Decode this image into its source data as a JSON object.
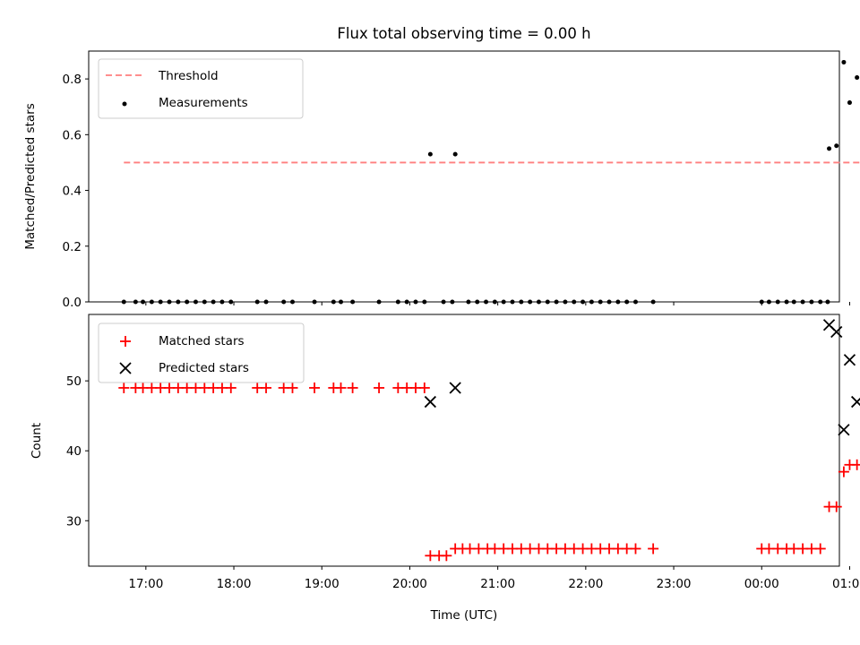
{
  "chart_data": [
    {
      "type": "scatter",
      "title": "Flux total observing time = 0.00 h",
      "xlabel": "",
      "ylabel": "Matched/Predicted stars",
      "ylim": [
        0.0,
        0.9
      ],
      "xlim": [
        "16:21",
        "00:53 +1d"
      ],
      "yticks": [
        "0.0",
        "0.2",
        "0.4",
        "0.6",
        "0.8"
      ],
      "legend": {
        "placement": "upper left",
        "entries": [
          "Threshold",
          "Measurements"
        ]
      },
      "threshold": {
        "name": "Threshold",
        "value": 0.5,
        "x_range": [
          "16:45",
          "01:23"
        ],
        "color": "#ff7f7f",
        "style": "dashed"
      },
      "series": [
        {
          "name": "Measurements",
          "color": "#000000",
          "points": [
            [
              "16:45",
              0.0
            ],
            [
              "16:53",
              0.0
            ],
            [
              "16:58",
              0.0
            ],
            [
              "17:04",
              0.0
            ],
            [
              "17:10",
              0.0
            ],
            [
              "17:16",
              0.0
            ],
            [
              "17:22",
              0.0
            ],
            [
              "17:28",
              0.0
            ],
            [
              "17:34",
              0.0
            ],
            [
              "17:40",
              0.0
            ],
            [
              "17:46",
              0.0
            ],
            [
              "17:52",
              0.0
            ],
            [
              "17:58",
              0.0
            ],
            [
              "18:16",
              0.0
            ],
            [
              "18:22",
              0.0
            ],
            [
              "18:34",
              0.0
            ],
            [
              "18:40",
              0.0
            ],
            [
              "18:55",
              0.0
            ],
            [
              "19:08",
              0.0
            ],
            [
              "19:13",
              0.0
            ],
            [
              "19:21",
              0.0
            ],
            [
              "19:39",
              0.0
            ],
            [
              "19:52",
              0.0
            ],
            [
              "19:58",
              0.0
            ],
            [
              "20:04",
              0.0
            ],
            [
              "20:10",
              0.0
            ],
            [
              "20:23",
              0.0
            ],
            [
              "20:29",
              0.0
            ],
            [
              "20:40",
              0.0
            ],
            [
              "20:46",
              0.0
            ],
            [
              "20:52",
              0.0
            ],
            [
              "20:58",
              0.0
            ],
            [
              "21:04",
              0.0
            ],
            [
              "21:10",
              0.0
            ],
            [
              "21:16",
              0.0
            ],
            [
              "21:22",
              0.0
            ],
            [
              "21:28",
              0.0
            ],
            [
              "21:34",
              0.0
            ],
            [
              "21:40",
              0.0
            ],
            [
              "21:46",
              0.0
            ],
            [
              "21:52",
              0.0
            ],
            [
              "21:58",
              0.0
            ],
            [
              "22:04",
              0.0
            ],
            [
              "22:10",
              0.0
            ],
            [
              "22:16",
              0.0
            ],
            [
              "22:22",
              0.0
            ],
            [
              "22:28",
              0.0
            ],
            [
              "22:34",
              0.0
            ],
            [
              "22:46",
              0.0
            ],
            [
              "00:00",
              0.0
            ],
            [
              "00:05",
              0.0
            ],
            [
              "00:11",
              0.0
            ],
            [
              "00:17",
              0.0
            ],
            [
              "00:22",
              0.0
            ],
            [
              "00:28",
              0.0
            ],
            [
              "00:34",
              0.0
            ],
            [
              "00:40",
              0.0
            ],
            [
              "00:45",
              0.0
            ],
            [
              "20:14",
              0.53
            ],
            [
              "20:31",
              0.53
            ],
            [
              "00:46",
              0.55
            ],
            [
              "00:51",
              0.56
            ],
            [
              "00:56",
              0.86
            ],
            [
              "01:00",
              0.715
            ],
            [
              "01:05",
              0.805
            ],
            [
              "01:11",
              0.74
            ],
            [
              "01:16",
              0.695
            ],
            [
              "01:20",
              0.765
            ],
            [
              "01:25",
              0.66
            ]
          ]
        }
      ]
    },
    {
      "type": "scatter",
      "title": "",
      "xlabel": "Time (UTC)",
      "ylabel": "Count",
      "ylim": [
        23.5,
        59.5
      ],
      "xlim": [
        "16:21",
        "00:53 +1d"
      ],
      "xticks": [
        "17:00",
        "18:00",
        "19:00",
        "20:00",
        "21:00",
        "22:00",
        "23:00",
        "00:00",
        "01:00"
      ],
      "yticks": [
        "30",
        "40",
        "50"
      ],
      "legend": {
        "placement": "upper left",
        "entries": [
          "Matched stars",
          "Predicted stars"
        ]
      },
      "series": [
        {
          "name": "Matched stars",
          "color": "#ff0000",
          "marker": "+",
          "points": [
            [
              "16:45",
              49
            ],
            [
              "16:53",
              49
            ],
            [
              "16:58",
              49
            ],
            [
              "17:04",
              49
            ],
            [
              "17:10",
              49
            ],
            [
              "17:16",
              49
            ],
            [
              "17:22",
              49
            ],
            [
              "17:28",
              49
            ],
            [
              "17:34",
              49
            ],
            [
              "17:40",
              49
            ],
            [
              "17:46",
              49
            ],
            [
              "17:52",
              49
            ],
            [
              "17:58",
              49
            ],
            [
              "18:16",
              49
            ],
            [
              "18:22",
              49
            ],
            [
              "18:34",
              49
            ],
            [
              "18:40",
              49
            ],
            [
              "18:55",
              49
            ],
            [
              "19:08",
              49
            ],
            [
              "19:13",
              49
            ],
            [
              "19:21",
              49
            ],
            [
              "19:39",
              49
            ],
            [
              "19:52",
              49
            ],
            [
              "19:58",
              49
            ],
            [
              "20:04",
              49
            ],
            [
              "20:10",
              49
            ],
            [
              "20:14",
              25
            ],
            [
              "20:20",
              25
            ],
            [
              "20:25",
              25
            ],
            [
              "20:31",
              26
            ],
            [
              "20:36",
              26
            ],
            [
              "20:41",
              26
            ],
            [
              "20:47",
              26
            ],
            [
              "20:53",
              26
            ],
            [
              "20:58",
              26
            ],
            [
              "21:04",
              26
            ],
            [
              "21:10",
              26
            ],
            [
              "21:16",
              26
            ],
            [
              "21:22",
              26
            ],
            [
              "21:28",
              26
            ],
            [
              "21:34",
              26
            ],
            [
              "21:40",
              26
            ],
            [
              "21:46",
              26
            ],
            [
              "21:52",
              26
            ],
            [
              "21:58",
              26
            ],
            [
              "22:04",
              26
            ],
            [
              "22:10",
              26
            ],
            [
              "22:16",
              26
            ],
            [
              "22:22",
              26
            ],
            [
              "22:28",
              26
            ],
            [
              "22:34",
              26
            ],
            [
              "22:46",
              26
            ],
            [
              "00:00",
              26
            ],
            [
              "00:05",
              26
            ],
            [
              "00:11",
              26
            ],
            [
              "00:17",
              26
            ],
            [
              "00:22",
              26
            ],
            [
              "00:28",
              26
            ],
            [
              "00:34",
              26
            ],
            [
              "00:40",
              26
            ],
            [
              "00:46",
              32
            ],
            [
              "00:51",
              32
            ],
            [
              "00:56",
              37
            ],
            [
              "01:00",
              38
            ],
            [
              "01:05",
              38
            ],
            [
              "01:11",
              29
            ],
            [
              "01:16",
              32
            ],
            [
              "01:20",
              33
            ],
            [
              "01:25",
              31
            ]
          ]
        },
        {
          "name": "Predicted stars",
          "color": "#000000",
          "marker": "x",
          "points": [
            [
              "20:14",
              47
            ],
            [
              "20:31",
              49
            ],
            [
              "00:46",
              58
            ],
            [
              "00:51",
              57
            ],
            [
              "00:56",
              43
            ],
            [
              "01:00",
              53
            ],
            [
              "01:05",
              47
            ],
            [
              "01:11",
              39
            ],
            [
              "01:16",
              46
            ],
            [
              "01:20",
              43
            ],
            [
              "01:25",
              47
            ]
          ]
        }
      ]
    }
  ]
}
